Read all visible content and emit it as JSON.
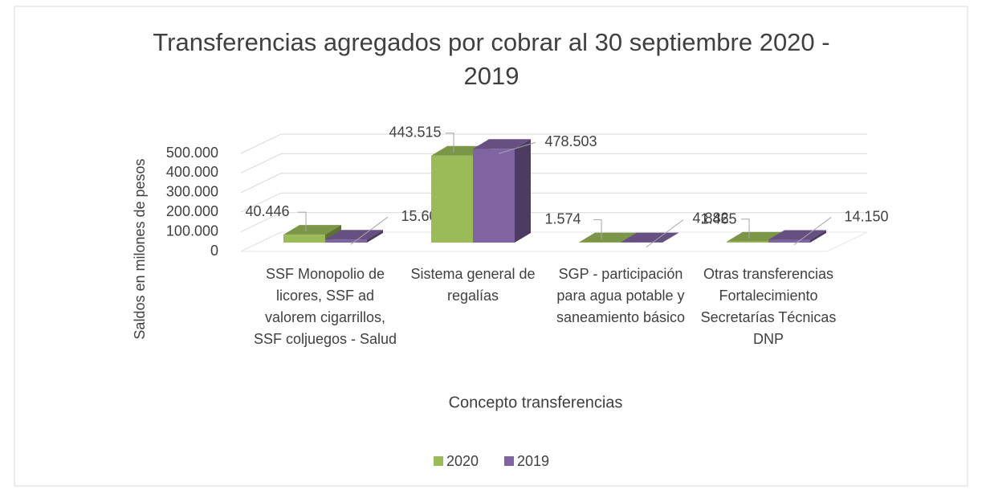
{
  "chart_data": {
    "type": "bar3d",
    "title": "Transferencias agregados por cobrar al 30 septiembre 2020 - 2019",
    "y_label": "Saldos en milones de pesos",
    "x_label": "Concepto transferencias",
    "categories": [
      "SSF Monopolio de licores, SSF ad valorem cigarrillos, SSF coljuegos - Salud",
      "Sistema general de regalías",
      "SGP - participación para agua potable y saneamiento básico",
      "Otras transferencias Fortalecimiento Secretarías Técnicas DNP"
    ],
    "series": [
      {
        "name": "2020",
        "color": "#9bbb59",
        "values": [
          40446,
          443515,
          1574,
          4882
        ],
        "value_labels": [
          "40.446",
          "443.515",
          "1.574",
          "4.882"
        ]
      },
      {
        "name": "2019",
        "color": "#8064a2",
        "values": [
          15601,
          478503,
          1465,
          14150
        ],
        "value_labels": [
          "15.601",
          "478.503",
          "1.465",
          "14.150"
        ]
      }
    ],
    "ylim": [
      0,
      500000
    ],
    "yticks": [
      0,
      {
        "value": 100000,
        "label": "100.000"
      },
      {
        "value": 200000,
        "label": "200.000"
      },
      {
        "value": 300000,
        "label": "300.000"
      },
      {
        "value": 400000,
        "label": "400.000"
      },
      {
        "value": 500000,
        "label": "500.000"
      }
    ],
    "grid": true,
    "legend": "bottom"
  }
}
